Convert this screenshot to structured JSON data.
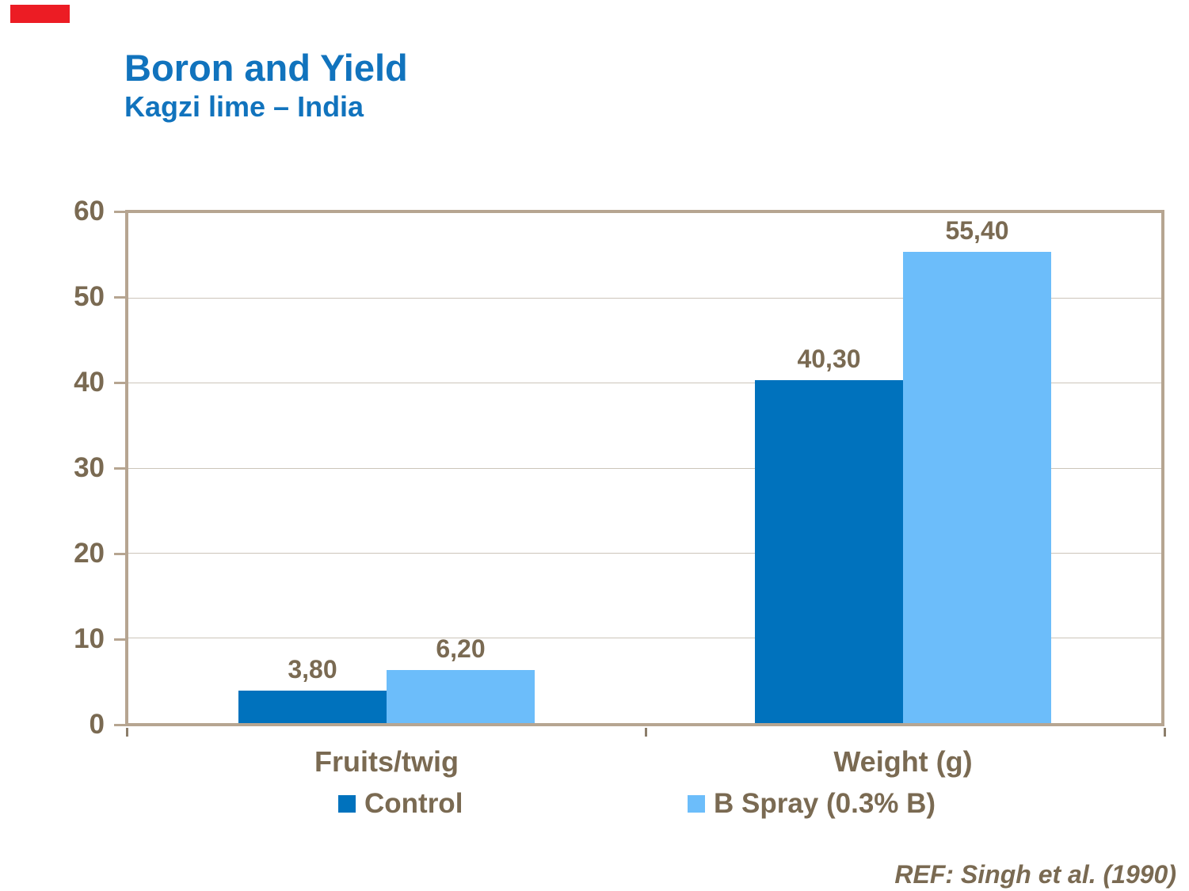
{
  "slide": {
    "title": "Boron and Yield",
    "subtitle": "Kagzi lime – India",
    "reference": "REF: Singh et al. (1990)"
  },
  "colors": {
    "accent_red": "#EC1C24",
    "title_blue": "#1173BD",
    "text_brown": "#7A6A52",
    "border_tan": "#B6A591",
    "gridline": "#CCC5BA",
    "control_blue": "#0072BD",
    "bspray_blue": "#6CBDFA"
  },
  "chart_data": {
    "type": "bar",
    "title": "",
    "xlabel": "",
    "ylabel": "",
    "categories": [
      "Fruits/twig",
      "Weight (g)"
    ],
    "series": [
      {
        "name": "Control",
        "color": "#0072BD",
        "values": [
          3.8,
          40.3
        ],
        "value_labels": [
          "3,80",
          "40,30"
        ]
      },
      {
        "name": "B Spray (0.3% B)",
        "color": "#6CBDFA",
        "values": [
          6.2,
          55.4
        ],
        "value_labels": [
          "6,20",
          "55,40"
        ]
      }
    ],
    "ylim": [
      0,
      60
    ],
    "yticks": [
      0,
      10,
      20,
      30,
      40,
      50,
      60
    ],
    "grid": true,
    "legend_position": "bottom"
  }
}
